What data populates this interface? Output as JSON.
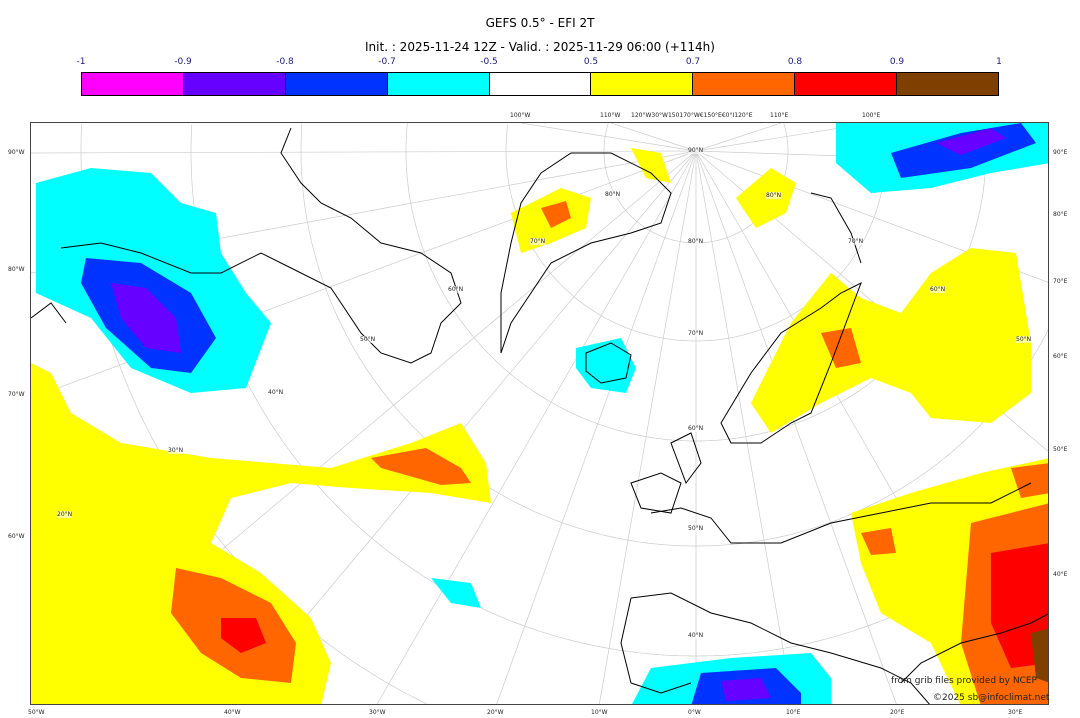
{
  "title": "GEFS 0.5° - EFI 2T",
  "subtitle": "Init. : 2025-11-24 12Z - Valid. : 2025-11-29 06:00 (+114h)",
  "colorbar": {
    "ticks": [
      "-1",
      "-0.9",
      "-0.8",
      "-0.7",
      "-0.5",
      "0.5",
      "0.7",
      "0.8",
      "0.9",
      "1"
    ],
    "colors": [
      "#ff00ff",
      "#6600ff",
      "#0033ff",
      "#00ffff",
      "#ffffff",
      "#ffff00",
      "#ff6600",
      "#ff0000",
      "#7f3f00"
    ]
  },
  "axes": {
    "left": [
      "90°W",
      "80°W",
      "70°W",
      "60°W"
    ],
    "right": [
      "90°E",
      "80°E",
      "70°E",
      "60°E",
      "50°E",
      "40°E"
    ],
    "bottom": [
      "50°W",
      "40°W",
      "30°W",
      "20°W",
      "10°W",
      "0°W",
      "10°E",
      "20°E",
      "30°E"
    ],
    "top": [
      "100°W",
      "110°W",
      "120°W30°W150170°W€150°E€0°I120°E",
      "110°E",
      "100°E"
    ],
    "lat_labels": [
      "90°N",
      "80°N",
      "80°N",
      "80°N",
      "70°N",
      "70°N",
      "70°N",
      "60°N",
      "60°N",
      "60°N",
      "50°N",
      "50°N",
      "50°N",
      "40°N",
      "40°N",
      "30°N",
      "20°N"
    ]
  },
  "credits": {
    "source": "from grib files provided by NCEP",
    "copyright": "©2025 sb@infoclimat.net"
  }
}
